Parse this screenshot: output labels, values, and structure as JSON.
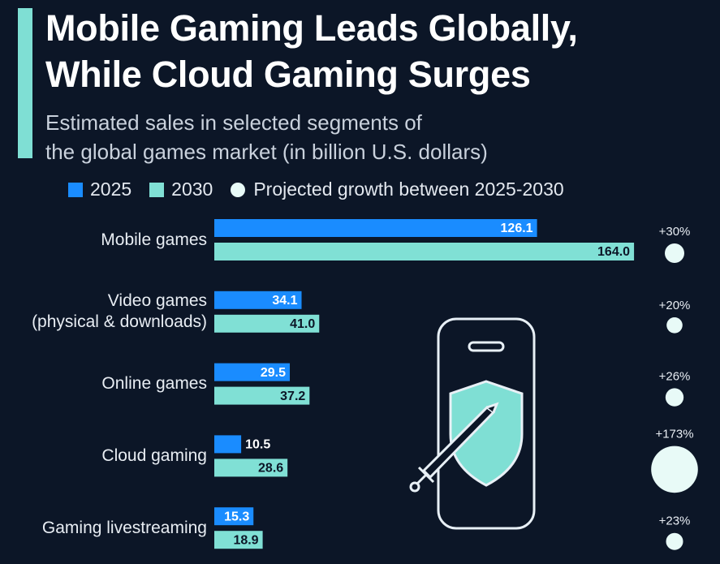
{
  "chart_data": {
    "type": "bar",
    "orientation": "horizontal",
    "title": "Mobile Gaming Leads Globally,\nWhile Cloud Gaming Surges",
    "subtitle": "Estimated sales in selected segments of\nthe global games market (in billion U.S. dollars)",
    "categories": [
      "Mobile games",
      "Video games\n(physical & downloads)",
      "Online games",
      "Cloud gaming",
      "Gaming livestreaming"
    ],
    "series": [
      {
        "name": "2025",
        "color": "#1a8cff",
        "values": [
          126.1,
          34.1,
          29.5,
          10.5,
          15.3
        ],
        "value_labels": [
          "126.1",
          "34.1",
          "29.5",
          "10.5",
          "15.3"
        ]
      },
      {
        "name": "2030",
        "color": "#80e0d5",
        "values": [
          164.0,
          41.0,
          37.2,
          28.6,
          18.9
        ],
        "value_labels": [
          "164.0",
          "41.0",
          "37.2",
          "28.6",
          "18.9"
        ]
      }
    ],
    "growth": {
      "name": "Projected growth between 2025-2030",
      "color": "#e8faf7",
      "values": [
        30,
        20,
        26,
        173,
        23
      ],
      "value_labels": [
        "+30%",
        "+20%",
        "+26%",
        "+173%",
        "+23%"
      ]
    }
  }
}
